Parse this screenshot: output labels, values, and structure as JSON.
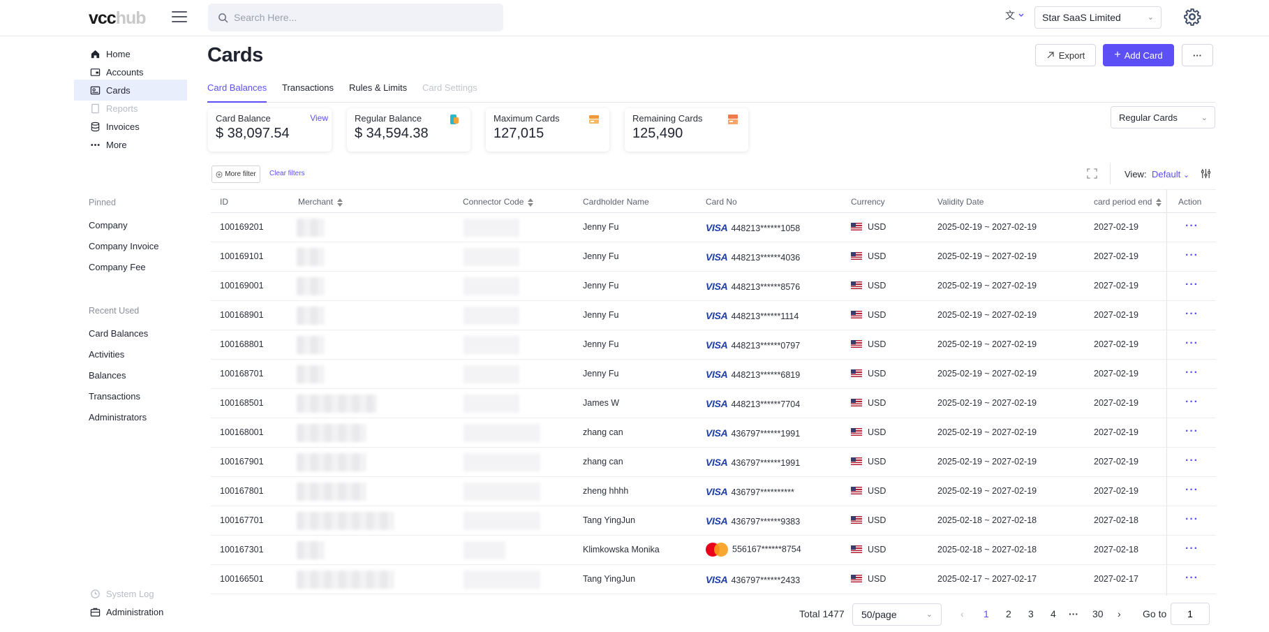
{
  "header": {
    "logo_main": "vcc",
    "logo_hub": "hub",
    "search_placeholder": "Search Here...",
    "language_icon": "translate-icon",
    "company": "Star SaaS Limited"
  },
  "sidebar": {
    "items": [
      {
        "label": "Home",
        "icon": "home-icon"
      },
      {
        "label": "Accounts",
        "icon": "wallet-icon"
      },
      {
        "label": "Cards",
        "icon": "card-icon"
      },
      {
        "label": "Reports",
        "icon": "report-icon"
      },
      {
        "label": "Invoices",
        "icon": "database-icon"
      },
      {
        "label": "More",
        "icon": "more-dots-icon"
      }
    ],
    "pinned_heading": "Pinned",
    "pinned": [
      "Company",
      "Company Invoice",
      "Company Fee"
    ],
    "recent_heading": "Recent Used",
    "recent": [
      "Card Balances",
      "Activities",
      "Balances",
      "Transactions",
      "Administrators"
    ],
    "system_log": "System Log",
    "administration": "Administration"
  },
  "page": {
    "title": "Cards",
    "export_label": "Export",
    "add_card_label": "Add Card",
    "more_label": "···"
  },
  "tabs": [
    "Card Balances",
    "Transactions",
    "Rules & Limits",
    "Card Settings"
  ],
  "stats": [
    {
      "label": "Card Balance",
      "value": "$ 38,097.54",
      "link": "View"
    },
    {
      "label": "Regular Balance",
      "value": "$ 34,594.38"
    },
    {
      "label": "Maximum Cards",
      "value": "127,015"
    },
    {
      "label": "Remaining Cards",
      "value": "125,490"
    }
  ],
  "card_type_filter": "Regular Cards",
  "toolbar": {
    "more_filter": "More filter",
    "clear_filters": "Clear filters",
    "view_label": "View:",
    "view_value": "Default"
  },
  "table": {
    "columns": [
      "ID",
      "Merchant",
      "Connector Code",
      "Cardholder Name",
      "Card No",
      "Currency",
      "Validity Date",
      "card period end",
      "Action"
    ],
    "rows": [
      {
        "id": "100169201",
        "holder": "Jenny Fu",
        "brand": "visa",
        "card": "448213******1058",
        "currency": "USD",
        "validity": "2025-02-19 ~ 2027-02-19",
        "end": "2027-02-19"
      },
      {
        "id": "100169101",
        "holder": "Jenny Fu",
        "brand": "visa",
        "card": "448213******4036",
        "currency": "USD",
        "validity": "2025-02-19 ~ 2027-02-19",
        "end": "2027-02-19"
      },
      {
        "id": "100169001",
        "holder": "Jenny Fu",
        "brand": "visa",
        "card": "448213******8576",
        "currency": "USD",
        "validity": "2025-02-19 ~ 2027-02-19",
        "end": "2027-02-19"
      },
      {
        "id": "100168901",
        "holder": "Jenny Fu",
        "brand": "visa",
        "card": "448213******1114",
        "currency": "USD",
        "validity": "2025-02-19 ~ 2027-02-19",
        "end": "2027-02-19"
      },
      {
        "id": "100168801",
        "holder": "Jenny Fu",
        "brand": "visa",
        "card": "448213******0797",
        "currency": "USD",
        "validity": "2025-02-19 ~ 2027-02-19",
        "end": "2027-02-19"
      },
      {
        "id": "100168701",
        "holder": "Jenny Fu",
        "brand": "visa",
        "card": "448213******6819",
        "currency": "USD",
        "validity": "2025-02-19 ~ 2027-02-19",
        "end": "2027-02-19"
      },
      {
        "id": "100168501",
        "holder": "James W",
        "brand": "visa",
        "card": "448213******7704",
        "currency": "USD",
        "validity": "2025-02-19 ~ 2027-02-19",
        "end": "2027-02-19"
      },
      {
        "id": "100168001",
        "holder": "zhang can",
        "brand": "visa",
        "card": "436797******1991",
        "currency": "USD",
        "validity": "2025-02-19 ~ 2027-02-19",
        "end": "2027-02-19"
      },
      {
        "id": "100167901",
        "holder": "zhang can",
        "brand": "visa",
        "card": "436797******1991",
        "currency": "USD",
        "validity": "2025-02-19 ~ 2027-02-19",
        "end": "2027-02-19"
      },
      {
        "id": "100167801",
        "holder": "zheng hhhh",
        "brand": "visa",
        "card": "436797**********",
        "currency": "USD",
        "validity": "2025-02-19 ~ 2027-02-19",
        "end": "2027-02-19"
      },
      {
        "id": "100167701",
        "holder": "Tang YingJun",
        "brand": "visa",
        "card": "436797******9383",
        "currency": "USD",
        "validity": "2025-02-18 ~ 2027-02-18",
        "end": "2027-02-18"
      },
      {
        "id": "100167301",
        "holder": "Klimkowska Monika",
        "brand": "mastercard",
        "card": "556167******8754",
        "currency": "USD",
        "validity": "2025-02-18 ~ 2027-02-18",
        "end": "2027-02-18"
      },
      {
        "id": "100166501",
        "holder": "Tang YingJun",
        "brand": "visa",
        "card": "436797******2433",
        "currency": "USD",
        "validity": "2025-02-17 ~ 2027-02-17",
        "end": "2027-02-17"
      }
    ],
    "visa_label": "VISA",
    "action_label": "···"
  },
  "pagination": {
    "total": "Total 1477",
    "page_size": "50/page",
    "pages": [
      "1",
      "2",
      "3",
      "4",
      "30"
    ],
    "ellipsis": "···",
    "current": "1",
    "goto_label": "Go to",
    "goto_value": "1"
  },
  "colors": {
    "accent": "#5b4ff5"
  }
}
